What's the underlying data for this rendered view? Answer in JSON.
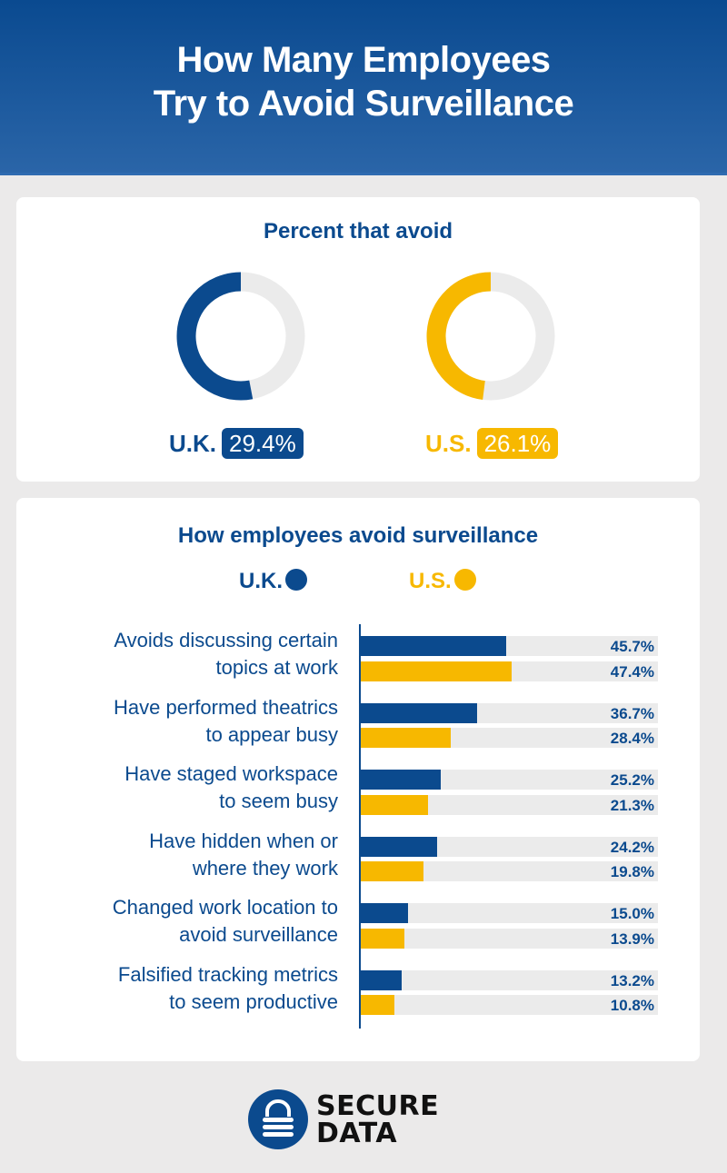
{
  "header": {
    "title_line1": "How Many Employees",
    "title_line2": "Try to Avoid Surveillance"
  },
  "colors": {
    "uk": "#0b4a8e",
    "us": "#f7b800",
    "track": "#ebebeb"
  },
  "chart_data": [
    {
      "type": "pie",
      "title": "Percent that avoid",
      "series": [
        {
          "name": "U.K.",
          "value": 29.4,
          "label": "29.4%",
          "donut_fill": 0.53
        },
        {
          "name": "U.S.",
          "value": 26.1,
          "label": "26.1%",
          "donut_fill": 0.48
        }
      ]
    },
    {
      "type": "bar",
      "orientation": "horizontal",
      "title": "How employees avoid surveillance",
      "legend": [
        "U.K.",
        "U.S."
      ],
      "legend_position": "top",
      "categories": [
        [
          "Avoids discussing certain",
          "topics at work"
        ],
        [
          "Have performed theatrics",
          "to appear busy"
        ],
        [
          "Have staged workspace",
          "to seem busy"
        ],
        [
          "Have hidden when or",
          "where they work"
        ],
        [
          "Changed work location to",
          "avoid surveillance"
        ],
        [
          "Falsified tracking metrics",
          "to seem productive"
        ]
      ],
      "series": [
        {
          "name": "U.K.",
          "values": [
            45.7,
            36.7,
            25.2,
            24.2,
            15.0,
            13.2
          ],
          "labels": [
            "45.7%",
            "36.7%",
            "25.2%",
            "24.2%",
            "15.0%",
            "13.2%"
          ]
        },
        {
          "name": "U.S.",
          "values": [
            47.4,
            28.4,
            21.3,
            19.8,
            13.9,
            10.8
          ],
          "labels": [
            "47.4%",
            "28.4%",
            "21.3%",
            "19.8%",
            "13.9%",
            "10.8%"
          ]
        }
      ]
    }
  ],
  "logo": {
    "line1": "SECURE",
    "line2": "DATA",
    "icon": "padlock-icon"
  }
}
